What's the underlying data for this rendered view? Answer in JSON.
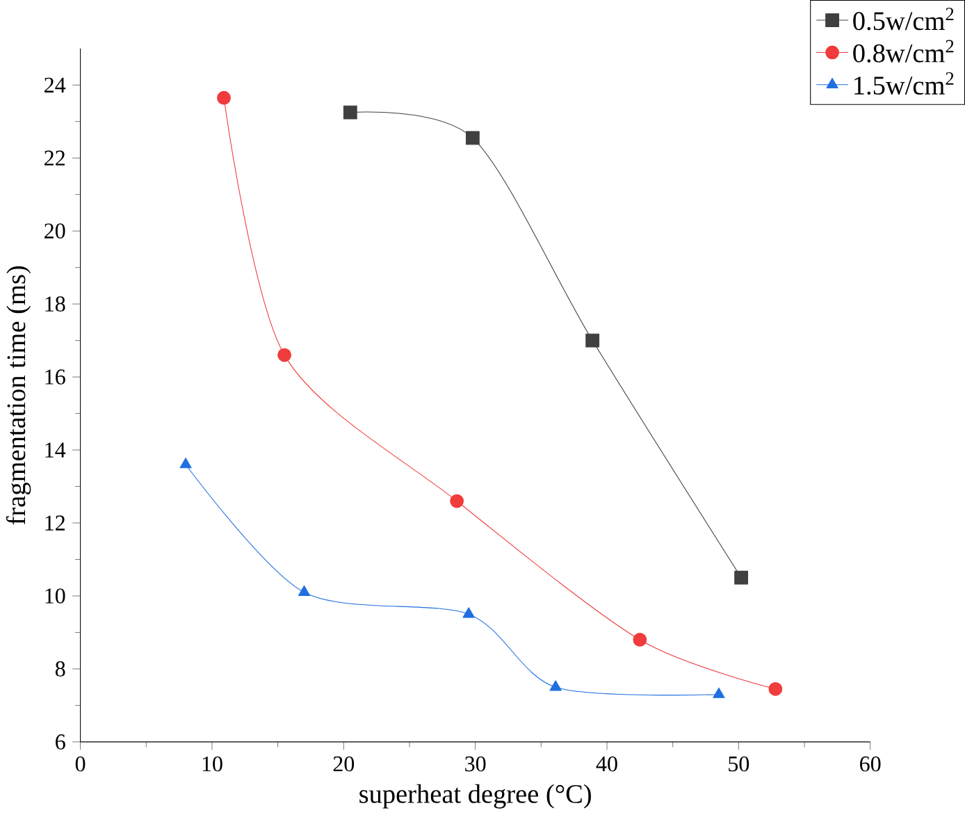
{
  "chart_data": {
    "type": "line",
    "xlabel": "superheat degree (°C)",
    "ylabel": "fragmentation time (ms)",
    "xlim": [
      0,
      60
    ],
    "xticks": [
      0,
      10,
      20,
      30,
      40,
      50,
      60
    ],
    "ylim": [
      6,
      25
    ],
    "yticks": [
      6,
      8,
      10,
      12,
      14,
      16,
      18,
      20,
      22,
      24
    ],
    "legend": "top right",
    "grid": false,
    "series": [
      {
        "name": "0.5w/cm$^{2}$",
        "color": "#404040",
        "marker": "square",
        "x": [
          20.5,
          29.8,
          38.9,
          50.2
        ],
        "values": [
          23.25,
          22.55,
          17.0,
          10.5
        ]
      },
      {
        "name": "0.8w/cm$^{2}$",
        "color": "#f03c3c",
        "marker": "circle",
        "x": [
          10.9,
          15.5,
          28.6,
          42.5,
          52.8
        ],
        "values": [
          23.65,
          16.6,
          12.6,
          8.8,
          7.45
        ]
      },
      {
        "name": "1.5w/cm$^{2}$",
        "color": "#1f6fe0",
        "marker": "triangle",
        "x": [
          8.0,
          17.0,
          29.5,
          36.1,
          48.5
        ],
        "values": [
          13.6,
          10.1,
          9.5,
          7.5,
          7.3
        ]
      }
    ]
  }
}
